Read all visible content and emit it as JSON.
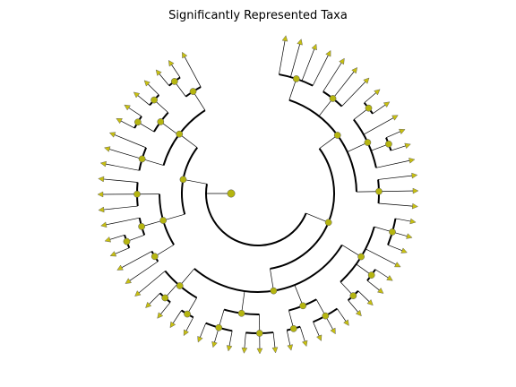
{
  "title": "Significantly Represented Taxa"
}
